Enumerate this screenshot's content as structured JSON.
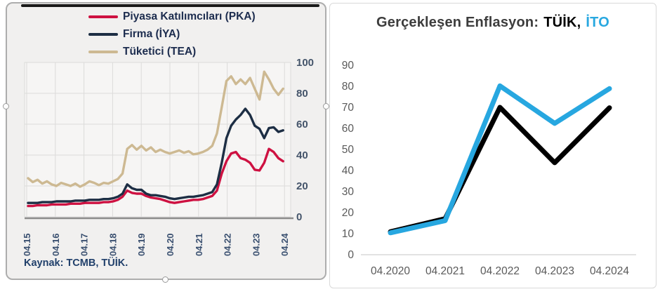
{
  "left_panel": {
    "source_note": "Kaynak: TCMB, TÜİK.",
    "background_color": "#F1F0EF",
    "top_rule_color": "#1A1A1A",
    "axis_text_color": "#3A5070",
    "grid_color": "#DCDBDA",
    "plot_background": "#F6F5F4",
    "baseline_color": "#8C8C8C"
  },
  "right_panel": {
    "title_prefix": "Gerçekleşen Enflasyon:",
    "title_tuik": "TÜİK,",
    "title_ito": "İTO",
    "title_prefix_color": "#3C3C3C",
    "title_tuik_color": "#000000",
    "title_ito_color": "#29A8E0",
    "axis_text_color": "#595959",
    "baseline_color": "#D9D9D9"
  },
  "chart_data": [
    {
      "type": "line",
      "title": "",
      "x_start_label": "04.15",
      "x_end_label": "04.24",
      "sampling": "every 2 months, April 2015 - April 2024",
      "x_tick_labels": [
        "04.15",
        "04.16",
        "04.17",
        "04.18",
        "04.19",
        "04.20",
        "04.21",
        "04.22",
        "04.23",
        "04.24"
      ],
      "y_ticks": [
        0,
        20,
        40,
        60,
        80,
        100
      ],
      "ylim": [
        0,
        100
      ],
      "y_axis_side": "right",
      "grid": true,
      "legend_position": "top",
      "source": "Kaynak: TCMB, TÜİK.",
      "series": [
        {
          "name": "Piyasa Katılımcıları (PKA)",
          "color": "#CE1141",
          "values": [
            7,
            7,
            7.5,
            7.5,
            7.5,
            8,
            8,
            8,
            8,
            8.5,
            8.5,
            8.5,
            9,
            9,
            9,
            9,
            9.5,
            9.5,
            10,
            11,
            13,
            17,
            15.5,
            15,
            15,
            13.5,
            12.5,
            12,
            11.5,
            10.5,
            9.5,
            9,
            9.5,
            10,
            10.5,
            11,
            11,
            11.5,
            12.5,
            13.5,
            17,
            28,
            36,
            41,
            42,
            38,
            37,
            35,
            30.5,
            30,
            35,
            44,
            42,
            38,
            36
          ]
        },
        {
          "name": "Firma (İYA)",
          "color": "#1D2E44",
          "values": [
            9,
            9,
            9,
            9.5,
            9.5,
            9.5,
            10,
            10,
            10,
            10,
            10.5,
            10.5,
            10.5,
            11,
            11,
            11,
            11.5,
            11.5,
            12,
            13,
            15,
            21,
            18.5,
            17.5,
            17.5,
            15,
            14,
            14,
            13.5,
            13,
            12,
            11.5,
            12,
            12.5,
            13,
            13,
            13.5,
            14,
            15,
            16,
            21,
            35,
            51,
            59,
            63,
            66,
            70,
            66,
            59,
            57,
            51,
            57.5,
            58,
            55,
            56
          ]
        },
        {
          "name": "Tüketici (TEA)",
          "color": "#CDB992",
          "values": [
            25,
            22.5,
            24,
            21.5,
            23,
            21,
            20,
            22,
            21,
            20,
            21.5,
            19.5,
            21,
            23,
            22,
            20.5,
            22,
            21.5,
            23,
            24.5,
            28,
            44,
            46.5,
            43.5,
            46,
            43,
            45,
            42,
            43.5,
            42,
            41,
            42,
            43,
            41.5,
            42.5,
            40.5,
            41,
            42,
            43.5,
            46,
            54,
            71,
            88,
            91,
            86,
            89,
            86,
            90,
            83,
            76,
            94,
            89,
            83,
            79,
            83
          ]
        }
      ]
    },
    {
      "type": "line",
      "title": "Gerçekleşen Enflasyon: TÜİK, İTO",
      "categories": [
        "04.2020",
        "04.2021",
        "04.2022",
        "04.2023",
        "04.2024"
      ],
      "y_ticks": [
        0,
        10,
        20,
        30,
        40,
        50,
        60,
        70,
        80,
        90
      ],
      "ylim": [
        0,
        90
      ],
      "grid": false,
      "legend_position": "in-title",
      "series": [
        {
          "name": "TÜİK",
          "color": "#000000",
          "values": [
            10.9,
            17.1,
            70.0,
            43.7,
            69.8
          ]
        },
        {
          "name": "İTO",
          "color": "#27A7E0",
          "values": [
            10.4,
            16.2,
            80.2,
            62.4,
            78.9
          ]
        }
      ]
    }
  ]
}
